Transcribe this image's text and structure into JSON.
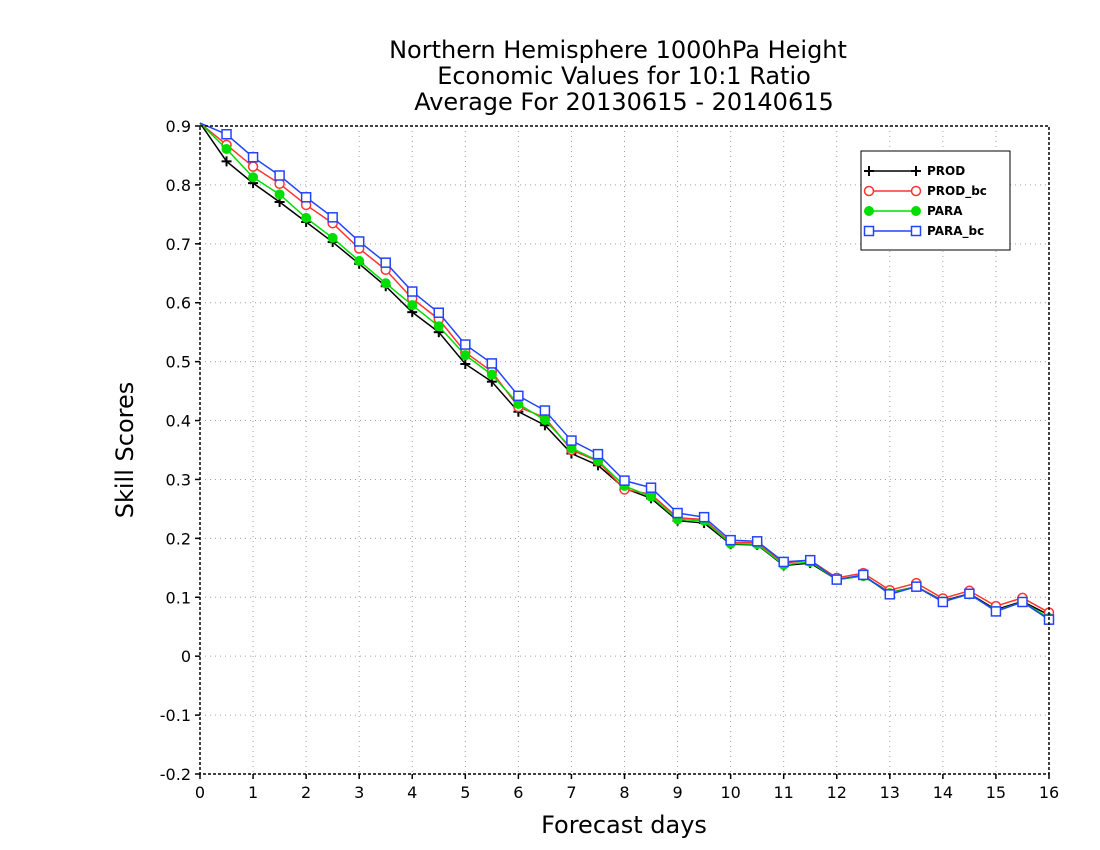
{
  "chart_data": {
    "type": "line",
    "title_lines": [
      "Northern Hemisphere 1000hPa Height",
      "Economic Values for 10:1 Ratio",
      "Average For 20130615 - 20140615"
    ],
    "xlabel": "Forecast days",
    "ylabel": "Skill Scores",
    "xlim": [
      0,
      16
    ],
    "ylim": [
      -0.2,
      0.9
    ],
    "xticks": [
      0,
      1,
      2,
      3,
      4,
      5,
      6,
      7,
      8,
      9,
      10,
      11,
      12,
      13,
      14,
      15,
      16
    ],
    "yticks": [
      -0.2,
      -0.1,
      0,
      0.1,
      0.2,
      0.3,
      0.4,
      0.5,
      0.6,
      0.7,
      0.8,
      0.9
    ],
    "grid": true,
    "legend_position": "top-right",
    "x": [
      0,
      0.5,
      1,
      1.5,
      2,
      2.5,
      3,
      3.5,
      4,
      4.5,
      5,
      5.5,
      6,
      6.5,
      7,
      7.5,
      8,
      8.5,
      9,
      9.5,
      10,
      10.5,
      11,
      11.5,
      12,
      12.5,
      13,
      13.5,
      14,
      14.5,
      15,
      15.5,
      16
    ],
    "series": [
      {
        "name": "PROD",
        "color": "#000000",
        "marker": "plus",
        "values": [
          0.905,
          0.84,
          0.803,
          0.771,
          0.737,
          0.703,
          0.666,
          0.628,
          0.584,
          0.55,
          0.496,
          0.466,
          0.415,
          0.392,
          0.344,
          0.324,
          0.285,
          0.268,
          0.23,
          0.226,
          0.19,
          0.189,
          0.154,
          0.158,
          0.13,
          0.136,
          0.108,
          0.118,
          0.094,
          0.106,
          0.079,
          0.093,
          0.07
        ]
      },
      {
        "name": "PROD_bc",
        "color": "#ff3333",
        "marker": "circle-open",
        "values": [
          0.905,
          0.868,
          0.831,
          0.802,
          0.766,
          0.735,
          0.692,
          0.656,
          0.607,
          0.572,
          0.516,
          0.483,
          0.423,
          0.405,
          0.35,
          0.331,
          0.283,
          0.275,
          0.235,
          0.232,
          0.193,
          0.193,
          0.158,
          0.163,
          0.133,
          0.141,
          0.112,
          0.124,
          0.098,
          0.111,
          0.085,
          0.099,
          0.074
        ]
      },
      {
        "name": "PARA",
        "color": "#00dd00",
        "marker": "circle-filled",
        "values": [
          0.905,
          0.861,
          0.813,
          0.784,
          0.744,
          0.71,
          0.671,
          0.633,
          0.596,
          0.56,
          0.511,
          0.478,
          0.428,
          0.401,
          0.353,
          0.332,
          0.289,
          0.271,
          0.232,
          0.23,
          0.191,
          0.19,
          0.155,
          0.16,
          0.13,
          0.136,
          0.107,
          0.118,
          0.093,
          0.105,
          0.077,
          0.092,
          0.065
        ]
      },
      {
        "name": "PARA_bc",
        "color": "#2244ff",
        "marker": "square-open",
        "values": [
          0.905,
          0.886,
          0.847,
          0.816,
          0.779,
          0.745,
          0.704,
          0.668,
          0.619,
          0.583,
          0.529,
          0.497,
          0.442,
          0.417,
          0.366,
          0.343,
          0.298,
          0.286,
          0.243,
          0.236,
          0.197,
          0.195,
          0.16,
          0.163,
          0.13,
          0.138,
          0.105,
          0.118,
          0.092,
          0.106,
          0.076,
          0.092,
          0.062
        ]
      }
    ]
  }
}
